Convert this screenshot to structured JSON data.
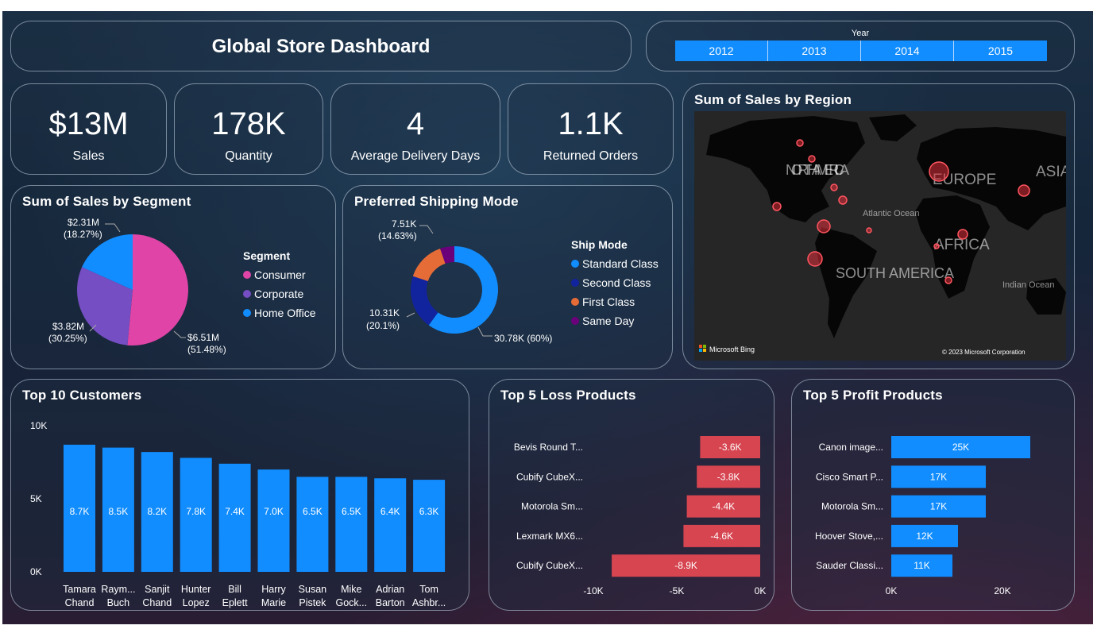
{
  "header": {
    "title": "Global Store Dashboard"
  },
  "year_filter": {
    "label": "Year",
    "years": [
      "2012",
      "2013",
      "2014",
      "2015"
    ]
  },
  "kpis": [
    {
      "value": "$13M",
      "label": "Sales"
    },
    {
      "value": "178K",
      "label": "Quantity"
    },
    {
      "value": "4",
      "label": "Average Delivery Days"
    },
    {
      "value": "1.1K",
      "label": "Returned Orders"
    }
  ],
  "segment": {
    "title": "Sum of Sales by Segment",
    "legend_title": "Segment"
  },
  "shipping": {
    "title": "Preferred Shipping Mode",
    "legend_title": "Ship Mode"
  },
  "map": {
    "title": "Sum of Sales by Region",
    "labels": {
      "north_america": "NORTH AMERICA",
      "europe": "EUROPE",
      "asia": "ASIA",
      "africa": "AFRICA",
      "south_america": "SOUTH AMERICA",
      "atlantic": "Atlantic Ocean",
      "indian": "Indian Ocean"
    },
    "bing_logo": "Microsoft Bing",
    "copyright": "© 2023 Microsoft Corporation"
  },
  "customers": {
    "title": "Top 10 Customers"
  },
  "loss": {
    "title": "Top 5 Loss Products"
  },
  "profit": {
    "title": "Top 5 Profit Products"
  },
  "colors": {
    "blue": "#118dff",
    "pink": "#e044a7",
    "purple": "#744ec2",
    "navy": "#12239e",
    "orange": "#e66c37",
    "violet": "#6b007b",
    "red": "#d64550"
  },
  "chart_data": [
    {
      "id": "segment",
      "type": "pie",
      "categories": [
        "Consumer",
        "Corporate",
        "Home Office"
      ],
      "values": [
        6.51,
        3.82,
        2.31
      ],
      "value_labels": [
        "$6.51M",
        "$3.82M",
        "$2.31M"
      ],
      "percent_labels": [
        "(51.48%)",
        "(30.25%)",
        "(18.27%)"
      ],
      "colors": [
        "#e044a7",
        "#744ec2",
        "#118dff"
      ]
    },
    {
      "id": "shipping",
      "type": "pie",
      "donut": true,
      "categories": [
        "Standard Class",
        "Second Class",
        "First Class",
        "Same Day"
      ],
      "values": [
        30.78,
        10.31,
        7.51,
        2.71
      ],
      "labels": [
        "30.78K (60%)",
        "10.31K",
        "7.51K",
        ""
      ],
      "percent_labels": [
        "",
        "(20.1%)",
        "(14.63%)",
        ""
      ],
      "colors": [
        "#118dff",
        "#12239e",
        "#e66c37",
        "#6b007b"
      ]
    },
    {
      "id": "customers",
      "type": "bar",
      "categories": [
        [
          "Tamara",
          "Chand"
        ],
        [
          "Raym...",
          "Buch"
        ],
        [
          "Sanjit",
          "Chand"
        ],
        [
          "Hunter",
          "Lopez"
        ],
        [
          "Bill",
          "Eplett"
        ],
        [
          "Harry",
          "Marie"
        ],
        [
          "Susan",
          "Pistek"
        ],
        [
          "Mike",
          "Gock..."
        ],
        [
          "Adrian",
          "Barton"
        ],
        [
          "Tom",
          "Ashbr..."
        ]
      ],
      "values": [
        8.7,
        8.5,
        8.2,
        7.8,
        7.4,
        7.0,
        6.5,
        6.5,
        6.4,
        6.3
      ],
      "data_labels": [
        "8.7K",
        "8.5K",
        "8.2K",
        "7.8K",
        "7.4K",
        "7.0K",
        "6.5K",
        "6.5K",
        "6.4K",
        "6.3K"
      ],
      "ylim": [
        0,
        10
      ],
      "yticks": [
        {
          "v": 0,
          "label": "0K"
        },
        {
          "v": 5,
          "label": "5K"
        },
        {
          "v": 10,
          "label": "10K"
        }
      ],
      "color": "#118dff"
    },
    {
      "id": "loss",
      "type": "bar",
      "orientation": "horizontal",
      "categories": [
        "Bevis Round T...",
        "Cubify CubeX...",
        "Motorola Sm...",
        "Lexmark MX6...",
        "Cubify CubeX..."
      ],
      "values": [
        -3.6,
        -3.8,
        -4.4,
        -4.6,
        -8.9
      ],
      "data_labels": [
        "-3.6K",
        "-3.8K",
        "-4.4K",
        "-4.6K",
        "-8.9K"
      ],
      "xlim": [
        -10,
        0
      ],
      "xticks": [
        {
          "v": -10,
          "label": "-10K"
        },
        {
          "v": -5,
          "label": "-5K"
        },
        {
          "v": 0,
          "label": "0K"
        }
      ],
      "color": "#d64550"
    },
    {
      "id": "profit",
      "type": "bar",
      "orientation": "horizontal",
      "categories": [
        "Canon image...",
        "Cisco Smart P...",
        "Motorola Sm...",
        "Hoover Stove,...",
        "Sauder Classi..."
      ],
      "values": [
        25,
        17,
        17,
        12,
        11
      ],
      "data_labels": [
        "25K",
        "17K",
        "17K",
        "12K",
        "11K"
      ],
      "xlim": [
        0,
        25
      ],
      "xticks": [
        {
          "v": 0,
          "label": "0K"
        },
        {
          "v": 20,
          "label": "20K"
        }
      ],
      "color": "#118dff"
    }
  ]
}
